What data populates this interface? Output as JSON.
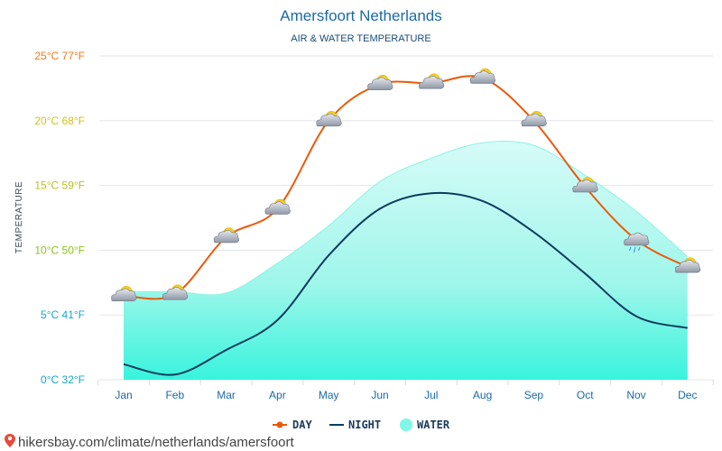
{
  "chart_data": {
    "type": "line",
    "title": "Amersfoort Netherlands",
    "subtitle": "AIR & WATER TEMPERATURE",
    "ylabel": "TEMPERATURE",
    "categories": [
      "Jan",
      "Feb",
      "Mar",
      "Apr",
      "May",
      "Jun",
      "Jul",
      "Aug",
      "Sep",
      "Oct",
      "Nov",
      "Dec"
    ],
    "ylim": [
      0,
      25
    ],
    "yticks": [
      {
        "c": 0,
        "label": "0°C 32°F",
        "color": "#18a7c9"
      },
      {
        "c": 5,
        "label": "5°C 41°F",
        "color": "#18a7c9"
      },
      {
        "c": 10,
        "label": "10°C 50°F",
        "color": "#8cc21f"
      },
      {
        "c": 15,
        "label": "15°C 59°F",
        "color": "#b9c21a"
      },
      {
        "c": 20,
        "label": "20°C 68°F",
        "color": "#d2c21a"
      },
      {
        "c": 25,
        "label": "25°C 77°F",
        "color": "#f07a1a"
      }
    ],
    "series": [
      {
        "name": "DAY",
        "color": "#ea5a0b",
        "values": [
          6.5,
          6.6,
          11.0,
          13.2,
          20.0,
          22.8,
          22.9,
          23.3,
          20.0,
          14.9,
          10.8,
          8.7
        ]
      },
      {
        "name": "NIGHT",
        "color": "#0d3b5e",
        "values": [
          1.2,
          0.4,
          2.3,
          4.6,
          9.6,
          13.2,
          14.4,
          13.8,
          11.4,
          8.2,
          4.9,
          4.0
        ]
      },
      {
        "name": "WATER",
        "color": "#7ff7ea",
        "values": [
          6.8,
          6.8,
          6.7,
          9.0,
          11.9,
          15.3,
          17.1,
          18.3,
          18.1,
          15.8,
          13.0,
          9.5
        ]
      }
    ],
    "weather_icons": [
      "partly-cloudy-icon",
      "partly-cloudy-icon",
      "partly-cloudy-icon",
      "partly-cloudy-icon",
      "partly-cloudy-icon",
      "partly-cloudy-icon",
      "partly-cloudy-icon",
      "partly-cloudy-icon",
      "partly-cloudy-icon",
      "partly-cloudy-icon",
      "rain-cloud-icon",
      "partly-cloudy-icon"
    ],
    "grid": true,
    "legend_position": "bottom"
  },
  "footer": {
    "text": "hikersbay.com/climate/netherlands/amersfoort",
    "icon": "map-pin-icon"
  }
}
